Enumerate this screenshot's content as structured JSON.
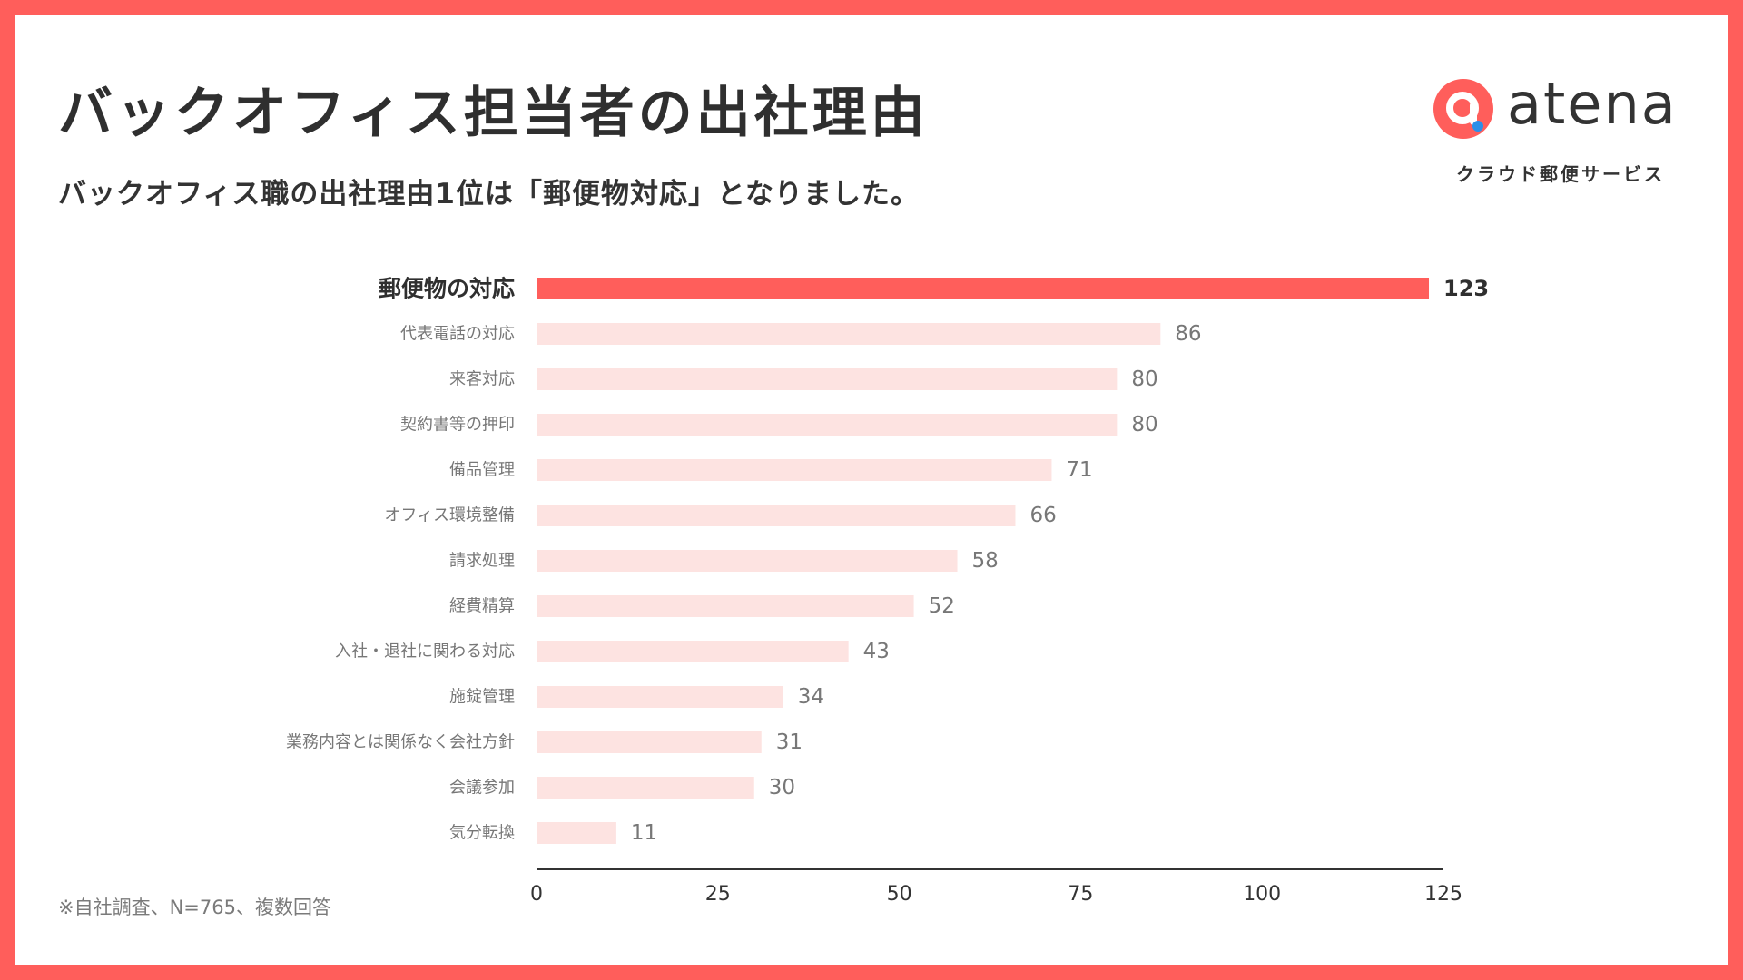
{
  "header": {
    "title": "バックオフィス担当者の出社理由",
    "subtitle": "バックオフィス職の出社理由1位は「郵便物対応」となりました。"
  },
  "logo": {
    "brand": "atena",
    "tagline": "クラウド郵便サービス",
    "icon": "atena-logo-icon"
  },
  "colors": {
    "frame": "#ff5e5b",
    "highlight_bar": "#ff5e5b",
    "bar": "#fde3e1",
    "label": "#777777",
    "label_highlight": "#2f2f2f",
    "axis": "#333333"
  },
  "chart_data": {
    "type": "bar",
    "orientation": "horizontal",
    "categories": [
      "郵便物の対応",
      "代表電話の対応",
      "来客対応",
      "契約書等の押印",
      "備品管理",
      "オフィス環境整備",
      "請求処理",
      "経費精算",
      "入社・退社に関わる対応",
      "施錠管理",
      "業務内容とは関係なく会社方針",
      "会議参加",
      "気分転換"
    ],
    "values": [
      123,
      86,
      80,
      80,
      71,
      66,
      58,
      52,
      43,
      34,
      31,
      30,
      11
    ],
    "highlight_index": 0,
    "xlim": [
      0,
      125
    ],
    "xticks": [
      0,
      25,
      50,
      75,
      100,
      125
    ],
    "grid": false,
    "legend": "none"
  },
  "footnote": "※自社調査、N=765、複数回答"
}
